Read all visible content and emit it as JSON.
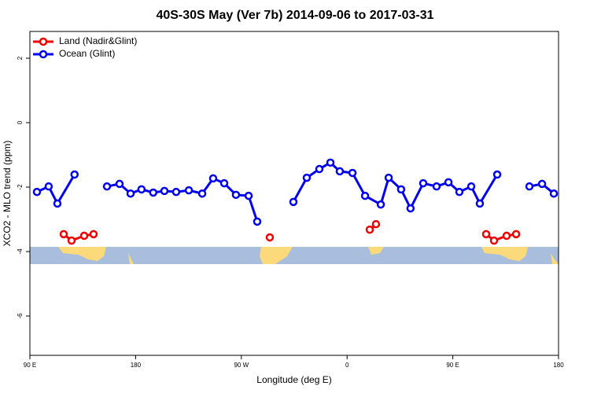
{
  "chart_data": {
    "type": "line",
    "title": "40S-30S May (Ver 7b)   2014-09-06 to 2017-03-31",
    "xlabel": "Longitude (deg E)",
    "ylabel": "XCO2 - MLO trend (ppm)",
    "xlim": [
      90,
      540
    ],
    "xticks": [
      {
        "value": 90,
        "label": "90 E"
      },
      180,
      {
        "value": 270,
        "label": "90 W"
      },
      {
        "value": 360,
        "label": "0"
      },
      {
        "value": 450,
        "label": "90 E"
      },
      {
        "value": 540,
        "label": "180"
      }
    ],
    "ylim": [
      -7.22,
      2.83
    ],
    "yticks": [
      -6,
      -4,
      -2,
      0,
      2
    ],
    "legend": "top-left",
    "series": [
      {
        "name": "Land (Nadir&Glint)",
        "color": "#ee0000",
        "x": [
          118.8,
          125.5,
          136.2,
          144.2,
          null,
          294.2,
          null,
          379.3,
          384.6,
          null,
          478.4,
          485.1,
          495.8,
          503.9
        ],
        "values": [
          -3.46,
          -3.66,
          -3.51,
          -3.46,
          null,
          -3.56,
          null,
          -3.32,
          -3.15,
          null,
          -3.46,
          -3.66,
          -3.51,
          -3.46
        ]
      },
      {
        "name": "Ocean (Glint)",
        "color": "#0000ee",
        "x": [
          96,
          106,
          113.4,
          128,
          null,
          155.6,
          166.3,
          175.7,
          185,
          195,
          204.5,
          214.5,
          225.3,
          236.7,
          246,
          255.4,
          265.4,
          276.2,
          283.5,
          null,
          314.3,
          325.7,
          336.4,
          345.8,
          353.8,
          364.6,
          375.3,
          388.7,
          395.4,
          406,
          414,
          424.8,
          436.2,
          446.3,
          455.6,
          465.7,
          473,
          487.8,
          null,
          515.2,
          526,
          536
        ],
        "values": [
          -2.15,
          -1.98,
          -2.51,
          -1.61,
          null,
          -1.98,
          -1.9,
          -2.2,
          -2.07,
          -2.17,
          -2.12,
          -2.15,
          -2.1,
          -2.2,
          -1.73,
          -1.88,
          -2.24,
          -2.27,
          -3.07,
          null,
          -2.46,
          -1.71,
          -1.44,
          -1.24,
          -1.51,
          -1.56,
          -2.27,
          -2.54,
          -1.71,
          -2.07,
          -2.66,
          -1.88,
          -1.98,
          -1.85,
          -2.15,
          -1.98,
          -2.51,
          -1.61,
          null,
          -1.98,
          -1.9,
          -2.2
        ]
      }
    ]
  }
}
